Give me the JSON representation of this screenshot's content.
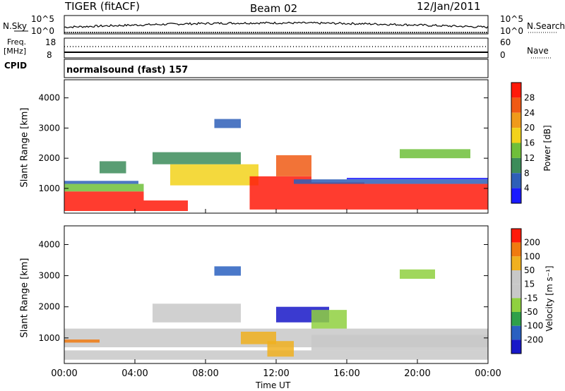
{
  "header": {
    "radar": "TIGER (fitACF)",
    "beam": "Beam 02",
    "date": "12/Jan/2011"
  },
  "top_panels": {
    "nsky_label": "N.Sky",
    "nsearch_label": "N.Search",
    "noise_ticks_left": [
      "10^5",
      "10^0"
    ],
    "noise_ticks_right": [
      "10^5",
      "10^0"
    ],
    "freq_label_1": "Freq.",
    "freq_label_2": "[MHz]",
    "freq_ticks": [
      "18",
      "8"
    ],
    "nave_label": "Nave",
    "nave_ticks": [
      "60",
      "0"
    ],
    "cpid_label": "CPID",
    "cpid_text": "normalsound (fast) 157"
  },
  "colors": {
    "power_scale": [
      "#1a1aff",
      "#2e5fb8",
      "#3c8c5a",
      "#6fbf3a",
      "#f2d21b",
      "#f09a1a",
      "#f05a14",
      "#ff1a0a"
    ],
    "velocity_scale": [
      "#1818c8",
      "#2a60c0",
      "#2fa04a",
      "#8fd040",
      "#c8c8c8",
      "#c8c8c8",
      "#f0b020",
      "#f07a10",
      "#ff1a0a"
    ]
  },
  "chart_data": [
    {
      "type": "heatmap",
      "name": "power",
      "ylabel": "Slant Range [km]",
      "xlabel": "",
      "x_ticks": [
        "00:00",
        "04:00",
        "08:00",
        "12:00",
        "16:00",
        "20:00",
        "00:00"
      ],
      "xlim_hours": [
        0,
        24
      ],
      "y_ticks": [
        "1000",
        "2000",
        "3000",
        "4000"
      ],
      "ylim": [
        180,
        4600
      ],
      "colorbar_label": "Power [dB]",
      "colorbar_ticks": [
        "4",
        "8",
        "12",
        "16",
        "20",
        "24",
        "28"
      ],
      "colorbar_range": [
        0,
        32
      ]
    },
    {
      "type": "heatmap",
      "name": "velocity",
      "ylabel": "Slant Range [km]",
      "xlabel": "Time UT",
      "x_ticks": [
        "00:00",
        "04:00",
        "08:00",
        "12:00",
        "16:00",
        "20:00",
        "00:00"
      ],
      "xlim_hours": [
        0,
        24
      ],
      "y_ticks": [
        "1000",
        "2000",
        "3000",
        "4000"
      ],
      "ylim": [
        180,
        4600
      ],
      "colorbar_label": "Velocity [m s⁻¹]",
      "colorbar_ticks": [
        "200",
        "100",
        "50",
        "15",
        "-15",
        "-50",
        "-100",
        "-200"
      ]
    }
  ]
}
